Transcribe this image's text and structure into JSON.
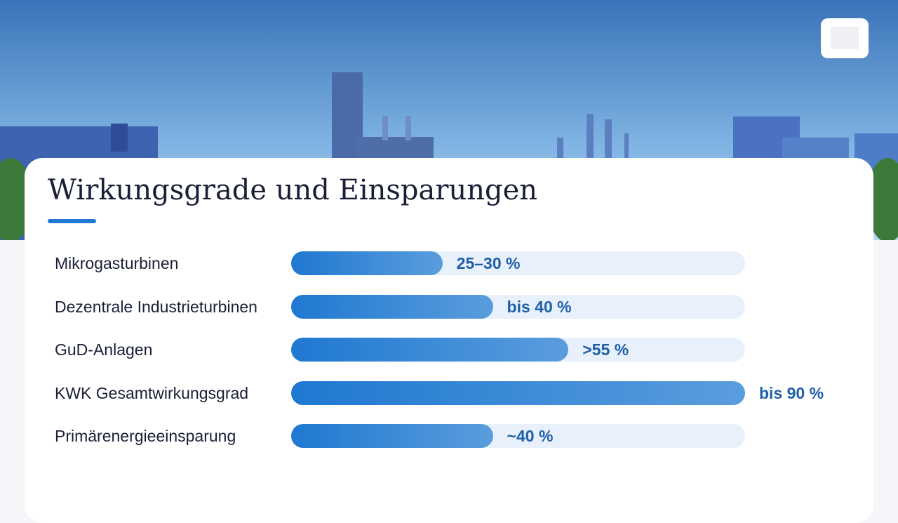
{
  "chart_data": {
    "type": "bar",
    "orientation": "horizontal",
    "title": "Wirkungsgrade und Einsparungen",
    "categories": [
      "Mikrogasturbinen",
      "Dezentrale Industrieturbinen",
      "GuD-Anlagen",
      "KWK Gesamtwirkungsgrad",
      "Primärenergieeinsparung"
    ],
    "values": [
      30,
      40,
      55,
      90,
      40
    ],
    "value_labels": [
      "25–30 %",
      "bis 40 %",
      ">55 %",
      "bis 90 %",
      "~40 %"
    ],
    "color": "#1f78d1",
    "xlim": [
      0,
      90
    ]
  }
}
